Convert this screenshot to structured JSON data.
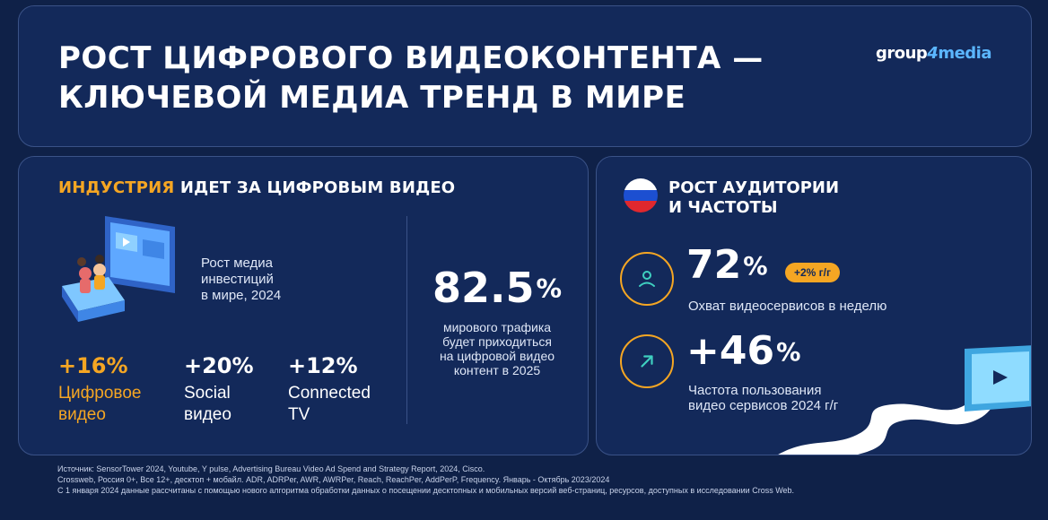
{
  "header": {
    "title_line1": "РОСТ ЦИФРОВОГО ВИДЕОКОНТЕНТА —",
    "title_line2": "КЛЮЧЕВОЙ МЕДИА ТРЕНД  В МИРЕ",
    "logo_group": "group",
    "logo_four": "4",
    "logo_media": "media"
  },
  "industry": {
    "title_accent": "ИНДУСТРИЯ",
    "title_rest": " ИДЕТ ЗА ЦИФРОВЫМ ВИДЕО",
    "invest_label_1": "Рост медиа",
    "invest_label_2": "инвестиций",
    "invest_label_3": "в мире, 2024",
    "stats": [
      {
        "value": "+16%",
        "label_1": "Цифровое",
        "label_2": "видео"
      },
      {
        "value": "+20%",
        "label_1": "Social",
        "label_2": "видео"
      },
      {
        "value": "+12%",
        "label_1": "Connected",
        "label_2": "TV"
      }
    ],
    "traffic_value": "82.5",
    "traffic_unit": "%",
    "traffic_desc_1": "мирового трафика",
    "traffic_desc_2": "будет приходиться",
    "traffic_desc_3": "на цифровой видео",
    "traffic_desc_4": "контент в 2025"
  },
  "audience": {
    "title_1": "РОСТ АУДИТОРИИ",
    "title_2": "И ЧАСТОТЫ",
    "reach_value": "72",
    "reach_unit": "%",
    "reach_badge": "+2% г/г",
    "reach_label": "Охват видеосервисов  в неделю",
    "freq_value": "+46",
    "freq_unit": "%",
    "freq_label_1": "Частота пользования",
    "freq_label_2": "видео сервисов 2024 г/г"
  },
  "footer": {
    "line1": "Источник: SensorTower 2024, Youtube, Y pulse,  Advertising Bureau Video Ad Spend and Strategy Report, 2024, Cisco.",
    "line2": "Crossweb, Россия 0+, Все 12+, десктоп + мобайл. ADR, ADRPer, AWR, AWRPer, Reach, ReachPer, AddPerP, Frequency. Январь - Октябрь 2023/2024",
    "line3": "С 1 января 2024 данные рассчитаны с помощью нового алгоритма обработки данных о посещении десктопных и мобильных версий веб-страниц, ресурсов, доступных в исследовании Cross Web."
  },
  "colors": {
    "background": "#0f2148",
    "panel": "#13295a",
    "accent": "#f5a623",
    "logo_blue": "#5bb6ff"
  },
  "icons": [
    "user-icon",
    "arrow-up-right-icon",
    "russia-flag-icon",
    "tv-illustration",
    "video-screen-illustration"
  ]
}
